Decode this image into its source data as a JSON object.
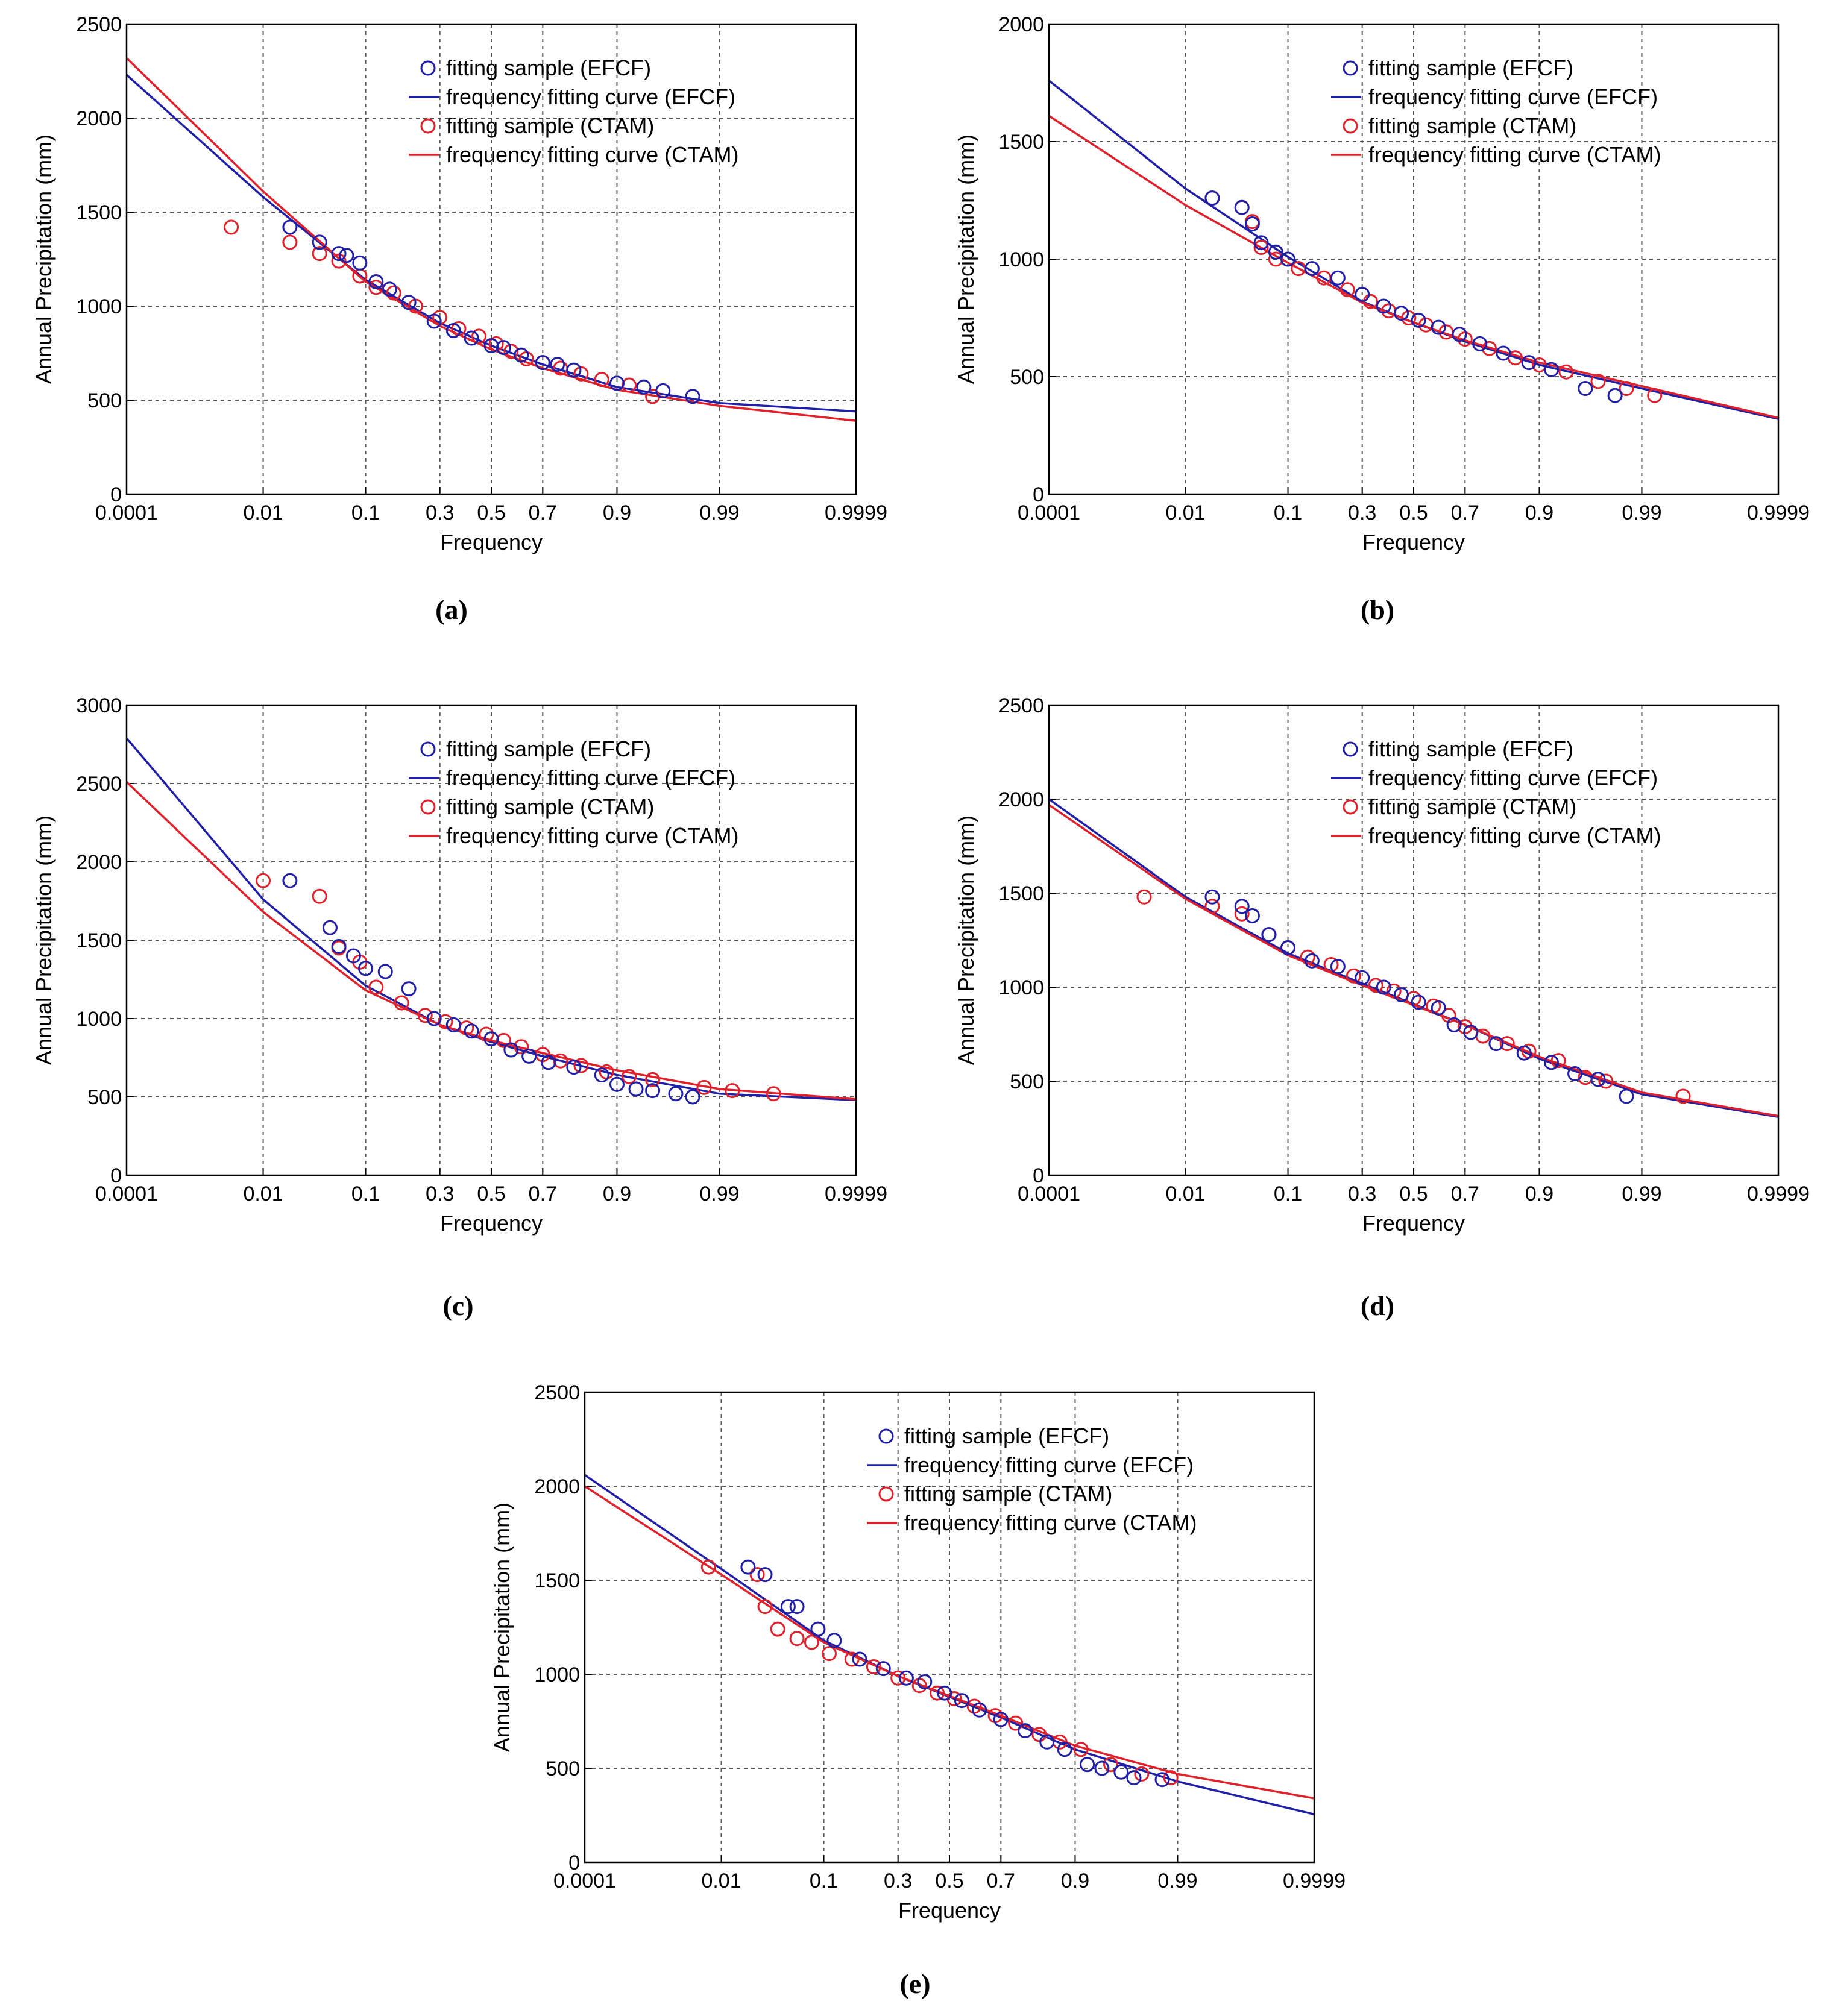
{
  "figure": {
    "colors": {
      "efcf": "#1f1fa8",
      "ctam": "#e0202a",
      "grid": "#555555",
      "axis": "#000000"
    },
    "x_ticks": [
      "0.0001",
      "0.01",
      "0.1",
      "0.3",
      "0.5",
      "0.7",
      "0.9",
      "0.99",
      "0.9999"
    ],
    "x_tick_values": [
      0.0001,
      0.01,
      0.1,
      0.3,
      0.5,
      0.7,
      0.9,
      0.99,
      0.9999
    ],
    "xlabel": "Frequency",
    "ylabel": "Annual Precipitation (mm)",
    "legend": [
      "fitting sample (EFCF)",
      "frequency fitting curve (EFCF)",
      "fitting sample (CTAM)",
      "frequency fitting curve (CTAM)"
    ]
  },
  "chart_data": [
    {
      "id": "a",
      "caption": "(a)",
      "type": "scatter",
      "legend_loc": "top-right",
      "xlabel": "Frequency",
      "ylabel": "Annual Precipitation (mm)",
      "y_ticks": [
        0,
        500,
        1000,
        1500,
        2000,
        2500
      ],
      "ylim": [
        0,
        2500
      ],
      "curves": {
        "efcf": {
          "p": [
            0.0001,
            0.01,
            0.1,
            0.3,
            0.5,
            0.7,
            0.9,
            0.99,
            0.9999
          ],
          "y": [
            2230,
            1580,
            1140,
            910,
            790,
            690,
            570,
            485,
            440
          ]
        },
        "ctam": {
          "p": [
            0.0001,
            0.01,
            0.1,
            0.3,
            0.5,
            0.7,
            0.9,
            0.99,
            0.9999
          ],
          "y": [
            2320,
            1610,
            1130,
            895,
            770,
            670,
            555,
            470,
            390
          ]
        }
      },
      "samples": {
        "efcf": [
          [
            0.02,
            1420
          ],
          [
            0.04,
            1340
          ],
          [
            0.06,
            1280
          ],
          [
            0.07,
            1270
          ],
          [
            0.09,
            1230
          ],
          [
            0.12,
            1130
          ],
          [
            0.15,
            1090
          ],
          [
            0.2,
            1020
          ],
          [
            0.28,
            920
          ],
          [
            0.35,
            870
          ],
          [
            0.42,
            830
          ],
          [
            0.5,
            790
          ],
          [
            0.55,
            780
          ],
          [
            0.62,
            740
          ],
          [
            0.7,
            700
          ],
          [
            0.75,
            690
          ],
          [
            0.8,
            660
          ],
          [
            0.9,
            590
          ],
          [
            0.94,
            570
          ],
          [
            0.96,
            550
          ],
          [
            0.98,
            520
          ]
        ],
        "ctam": [
          [
            0.004,
            1420
          ],
          [
            0.02,
            1340
          ],
          [
            0.04,
            1280
          ],
          [
            0.06,
            1240
          ],
          [
            0.09,
            1160
          ],
          [
            0.12,
            1100
          ],
          [
            0.16,
            1070
          ],
          [
            0.22,
            1000
          ],
          [
            0.3,
            940
          ],
          [
            0.37,
            880
          ],
          [
            0.45,
            840
          ],
          [
            0.52,
            800
          ],
          [
            0.58,
            760
          ],
          [
            0.64,
            720
          ],
          [
            0.7,
            700
          ],
          [
            0.76,
            670
          ],
          [
            0.82,
            640
          ],
          [
            0.87,
            610
          ],
          [
            0.92,
            580
          ],
          [
            0.95,
            520
          ]
        ]
      }
    },
    {
      "id": "b",
      "caption": "(b)",
      "type": "scatter",
      "legend_loc": "top-right",
      "xlabel": "Frequency",
      "ylabel": "Annual Precipitation (mm)",
      "y_ticks": [
        0,
        500,
        1000,
        1500,
        2000
      ],
      "ylim": [
        0,
        2000
      ],
      "curves": {
        "efcf": {
          "p": [
            0.0001,
            0.01,
            0.1,
            0.3,
            0.5,
            0.7,
            0.9,
            0.99,
            0.9999
          ],
          "y": [
            1760,
            1300,
            1010,
            820,
            730,
            650,
            550,
            450,
            320
          ]
        },
        "ctam": {
          "p": [
            0.0001,
            0.01,
            0.1,
            0.3,
            0.5,
            0.7,
            0.9,
            0.99,
            0.9999
          ],
          "y": [
            1610,
            1230,
            985,
            815,
            730,
            655,
            560,
            460,
            325
          ]
        }
      },
      "samples": {
        "efcf": [
          [
            0.02,
            1260
          ],
          [
            0.04,
            1220
          ],
          [
            0.05,
            1150
          ],
          [
            0.06,
            1070
          ],
          [
            0.08,
            1030
          ],
          [
            0.1,
            1000
          ],
          [
            0.15,
            960
          ],
          [
            0.22,
            920
          ],
          [
            0.3,
            850
          ],
          [
            0.38,
            800
          ],
          [
            0.45,
            770
          ],
          [
            0.52,
            740
          ],
          [
            0.6,
            710
          ],
          [
            0.68,
            680
          ],
          [
            0.75,
            640
          ],
          [
            0.82,
            600
          ],
          [
            0.88,
            560
          ],
          [
            0.92,
            530
          ],
          [
            0.96,
            450
          ],
          [
            0.98,
            420
          ]
        ],
        "ctam": [
          [
            0.02,
            1260
          ],
          [
            0.04,
            1220
          ],
          [
            0.05,
            1160
          ],
          [
            0.06,
            1050
          ],
          [
            0.08,
            1000
          ],
          [
            0.12,
            960
          ],
          [
            0.18,
            920
          ],
          [
            0.25,
            870
          ],
          [
            0.33,
            820
          ],
          [
            0.4,
            780
          ],
          [
            0.48,
            750
          ],
          [
            0.55,
            720
          ],
          [
            0.63,
            690
          ],
          [
            0.7,
            660
          ],
          [
            0.78,
            620
          ],
          [
            0.85,
            580
          ],
          [
            0.9,
            550
          ],
          [
            0.94,
            520
          ],
          [
            0.97,
            480
          ],
          [
            0.985,
            450
          ],
          [
            0.993,
            420
          ]
        ]
      }
    },
    {
      "id": "c",
      "caption": "(c)",
      "type": "scatter",
      "legend_loc": "top-right",
      "xlabel": "Frequency",
      "ylabel": "Annual Precipitation (mm)",
      "y_ticks": [
        0,
        500,
        1000,
        1500,
        2000,
        2500,
        3000
      ],
      "ylim": [
        0,
        3000
      ],
      "curves": {
        "efcf": {
          "p": [
            0.0001,
            0.01,
            0.1,
            0.3,
            0.5,
            0.7,
            0.9,
            0.99,
            0.9999
          ],
          "y": [
            2790,
            1760,
            1210,
            960,
            850,
            760,
            640,
            520,
            480
          ]
        },
        "ctam": {
          "p": [
            0.0001,
            0.01,
            0.1,
            0.3,
            0.5,
            0.7,
            0.9,
            0.99,
            0.9999
          ],
          "y": [
            2510,
            1680,
            1180,
            960,
            860,
            780,
            670,
            550,
            485
          ]
        }
      },
      "samples": {
        "efcf": [
          [
            0.02,
            1880
          ],
          [
            0.05,
            1580
          ],
          [
            0.06,
            1460
          ],
          [
            0.08,
            1400
          ],
          [
            0.1,
            1320
          ],
          [
            0.14,
            1300
          ],
          [
            0.2,
            1190
          ],
          [
            0.28,
            1000
          ],
          [
            0.35,
            960
          ],
          [
            0.42,
            920
          ],
          [
            0.5,
            870
          ],
          [
            0.58,
            800
          ],
          [
            0.65,
            760
          ],
          [
            0.72,
            720
          ],
          [
            0.8,
            690
          ],
          [
            0.87,
            640
          ],
          [
            0.9,
            580
          ],
          [
            0.93,
            550
          ],
          [
            0.95,
            540
          ],
          [
            0.97,
            520
          ],
          [
            0.98,
            500
          ]
        ],
        "ctam": [
          [
            0.01,
            1880
          ],
          [
            0.04,
            1780
          ],
          [
            0.05,
            1580
          ],
          [
            0.06,
            1450
          ],
          [
            0.09,
            1360
          ],
          [
            0.12,
            1200
          ],
          [
            0.18,
            1100
          ],
          [
            0.25,
            1020
          ],
          [
            0.32,
            980
          ],
          [
            0.4,
            940
          ],
          [
            0.48,
            900
          ],
          [
            0.55,
            860
          ],
          [
            0.62,
            820
          ],
          [
            0.7,
            770
          ],
          [
            0.76,
            730
          ],
          [
            0.82,
            700
          ],
          [
            0.88,
            660
          ],
          [
            0.92,
            630
          ],
          [
            0.95,
            610
          ],
          [
            0.985,
            560
          ],
          [
            0.993,
            540
          ],
          [
            0.998,
            520
          ]
        ]
      }
    },
    {
      "id": "d",
      "caption": "(d)",
      "type": "scatter",
      "legend_loc": "top-right",
      "xlabel": "Frequency",
      "ylabel": "Annual Precipitation (mm)",
      "y_ticks": [
        0,
        500,
        1000,
        1500,
        2000,
        2500
      ],
      "ylim": [
        0,
        2500
      ],
      "curves": {
        "efcf": {
          "p": [
            0.0001,
            0.01,
            0.1,
            0.3,
            0.5,
            0.7,
            0.9,
            0.99,
            0.9999
          ],
          "y": [
            2000,
            1480,
            1180,
            1020,
            910,
            800,
            620,
            430,
            310
          ]
        },
        "ctam": {
          "p": [
            0.0001,
            0.01,
            0.1,
            0.3,
            0.5,
            0.7,
            0.9,
            0.99,
            0.9999
          ],
          "y": [
            1970,
            1470,
            1170,
            1010,
            905,
            800,
            630,
            440,
            315
          ]
        }
      },
      "samples": {
        "efcf": [
          [
            0.02,
            1480
          ],
          [
            0.04,
            1430
          ],
          [
            0.05,
            1380
          ],
          [
            0.07,
            1280
          ],
          [
            0.1,
            1210
          ],
          [
            0.15,
            1140
          ],
          [
            0.22,
            1110
          ],
          [
            0.3,
            1050
          ],
          [
            0.38,
            1000
          ],
          [
            0.45,
            960
          ],
          [
            0.52,
            920
          ],
          [
            0.6,
            890
          ],
          [
            0.66,
            800
          ],
          [
            0.72,
            760
          ],
          [
            0.8,
            700
          ],
          [
            0.87,
            650
          ],
          [
            0.92,
            600
          ],
          [
            0.95,
            540
          ],
          [
            0.97,
            510
          ],
          [
            0.985,
            420
          ]
        ],
        "ctam": [
          [
            0.003,
            1480
          ],
          [
            0.02,
            1430
          ],
          [
            0.04,
            1390
          ],
          [
            0.07,
            1280
          ],
          [
            0.1,
            1210
          ],
          [
            0.14,
            1160
          ],
          [
            0.2,
            1120
          ],
          [
            0.27,
            1060
          ],
          [
            0.35,
            1010
          ],
          [
            0.42,
            980
          ],
          [
            0.5,
            940
          ],
          [
            0.58,
            900
          ],
          [
            0.64,
            850
          ],
          [
            0.7,
            790
          ],
          [
            0.76,
            740
          ],
          [
            0.83,
            700
          ],
          [
            0.88,
            660
          ],
          [
            0.93,
            610
          ],
          [
            0.96,
            520
          ],
          [
            0.975,
            500
          ],
          [
            0.997,
            420
          ]
        ]
      }
    },
    {
      "id": "e",
      "caption": "(e)",
      "type": "scatter",
      "legend_loc": "top-right",
      "xlabel": "Frequency",
      "ylabel": "Annual Precipitation (mm)",
      "y_ticks": [
        0,
        500,
        1000,
        1500,
        2000,
        2500
      ],
      "ylim": [
        0,
        2500
      ],
      "curves": {
        "efcf": {
          "p": [
            0.0001,
            0.01,
            0.1,
            0.3,
            0.5,
            0.7,
            0.9,
            0.99,
            0.9999
          ],
          "y": [
            2060,
            1560,
            1180,
            990,
            880,
            770,
            600,
            430,
            255
          ]
        },
        "ctam": {
          "p": [
            0.0001,
            0.01,
            0.1,
            0.3,
            0.5,
            0.7,
            0.9,
            0.99,
            0.9999
          ],
          "y": [
            2000,
            1530,
            1170,
            990,
            885,
            780,
            620,
            470,
            340
          ]
        }
      },
      "samples": {
        "efcf": [
          [
            0.02,
            1570
          ],
          [
            0.03,
            1530
          ],
          [
            0.05,
            1360
          ],
          [
            0.06,
            1360
          ],
          [
            0.09,
            1240
          ],
          [
            0.12,
            1180
          ],
          [
            0.18,
            1080
          ],
          [
            0.25,
            1030
          ],
          [
            0.33,
            980
          ],
          [
            0.4,
            960
          ],
          [
            0.48,
            900
          ],
          [
            0.55,
            860
          ],
          [
            0.62,
            810
          ],
          [
            0.7,
            760
          ],
          [
            0.78,
            700
          ],
          [
            0.84,
            640
          ],
          [
            0.88,
            600
          ],
          [
            0.92,
            520
          ],
          [
            0.94,
            500
          ],
          [
            0.96,
            480
          ],
          [
            0.97,
            450
          ],
          [
            0.985,
            440
          ]
        ],
        "ctam": [
          [
            0.007,
            1570
          ],
          [
            0.025,
            1530
          ],
          [
            0.03,
            1360
          ],
          [
            0.04,
            1240
          ],
          [
            0.06,
            1190
          ],
          [
            0.08,
            1170
          ],
          [
            0.11,
            1110
          ],
          [
            0.16,
            1080
          ],
          [
            0.22,
            1040
          ],
          [
            0.3,
            980
          ],
          [
            0.38,
            940
          ],
          [
            0.45,
            900
          ],
          [
            0.52,
            870
          ],
          [
            0.6,
            830
          ],
          [
            0.68,
            780
          ],
          [
            0.75,
            740
          ],
          [
            0.82,
            680
          ],
          [
            0.87,
            640
          ],
          [
            0.91,
            600
          ],
          [
            0.95,
            520
          ],
          [
            0.975,
            470
          ],
          [
            0.988,
            450
          ]
        ]
      }
    }
  ]
}
